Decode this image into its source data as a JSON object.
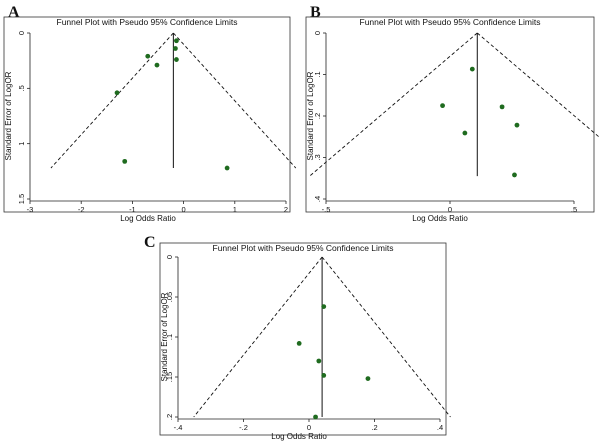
{
  "colors": {
    "point": "#1f6b1f",
    "line": "#111111",
    "frame": "#333333",
    "background": "#ffffff"
  },
  "chart_data": [
    {
      "panel": "A",
      "type": "scatter",
      "title": "Funnel Plot with Pseudo 95% Confidence Limits",
      "xlabel": "Log Odds Ratio",
      "ylabel": "Standard Error of LogOR",
      "xlim": [
        -3,
        2
      ],
      "ylim": [
        0,
        1.5
      ],
      "y_reversed": true,
      "xticks": [
        -3,
        -2,
        -1,
        0,
        1,
        2
      ],
      "xtick_labels": [
        "-3",
        "-2",
        "-1",
        "0",
        "1",
        "2"
      ],
      "yticks": [
        0,
        0.5,
        1,
        1.5
      ],
      "ytick_labels": [
        "0",
        ".5",
        "1",
        "1.5"
      ],
      "pooled_log_or": -0.2,
      "ci_max_se": 1.22,
      "points": [
        {
          "x": -0.14,
          "y": 0.07
        },
        {
          "x": -0.16,
          "y": 0.14
        },
        {
          "x": -0.14,
          "y": 0.24
        },
        {
          "x": -0.7,
          "y": 0.21
        },
        {
          "x": -0.52,
          "y": 0.29
        },
        {
          "x": -1.3,
          "y": 0.54
        },
        {
          "x": -1.15,
          "y": 1.16
        },
        {
          "x": 0.85,
          "y": 1.22
        }
      ]
    },
    {
      "panel": "B",
      "type": "scatter",
      "title": "Funnel Plot with Pseudo 95% Confidence Limits",
      "xlabel": "Log Odds Ratio",
      "ylabel": "Standard Error of LogOR",
      "xlim": [
        -0.5,
        0.5
      ],
      "ylim": [
        0,
        0.4
      ],
      "y_reversed": true,
      "xticks": [
        -0.5,
        0,
        0.5
      ],
      "xtick_labels": [
        "-.5",
        "0",
        ".5"
      ],
      "yticks": [
        0,
        0.1,
        0.2,
        0.3,
        0.4
      ],
      "ytick_labels": [
        "0",
        ".1",
        ".2",
        ".3",
        ".4"
      ],
      "pooled_log_or": 0.11,
      "ci_max_se": 0.345,
      "points": [
        {
          "x": 0.09,
          "y": 0.087
        },
        {
          "x": -0.03,
          "y": 0.175
        },
        {
          "x": 0.21,
          "y": 0.178
        },
        {
          "x": 0.27,
          "y": 0.222
        },
        {
          "x": 0.06,
          "y": 0.241
        },
        {
          "x": 0.26,
          "y": 0.342
        }
      ]
    },
    {
      "panel": "C",
      "type": "scatter",
      "title": "Funnel Plot with Pseudo 95% Confidence Limits",
      "xlabel": "Log Odds Ratio",
      "ylabel": "Standard Error of LogOR",
      "xlim": [
        -0.4,
        0.4
      ],
      "ylim": [
        0,
        0.2
      ],
      "y_reversed": true,
      "xticks": [
        -0.4,
        -0.2,
        0,
        0.2,
        0.4
      ],
      "xtick_labels": [
        "-.4",
        "-.2",
        "0",
        ".2",
        ".4"
      ],
      "yticks": [
        0,
        0.05,
        0.1,
        0.15,
        0.2
      ],
      "ytick_labels": [
        "0",
        ".05",
        ".1",
        ".15",
        ".2"
      ],
      "pooled_log_or": 0.04,
      "ci_max_se": 0.2,
      "points": [
        {
          "x": 0.045,
          "y": 0.062
        },
        {
          "x": -0.03,
          "y": 0.108
        },
        {
          "x": 0.03,
          "y": 0.13
        },
        {
          "x": 0.045,
          "y": 0.148
        },
        {
          "x": 0.18,
          "y": 0.152
        },
        {
          "x": 0.02,
          "y": 0.2
        }
      ]
    }
  ]
}
